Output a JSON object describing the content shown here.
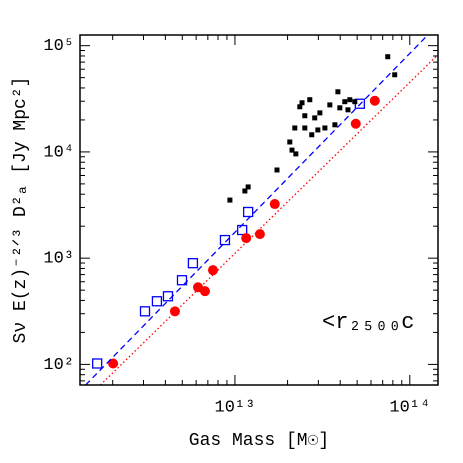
{
  "chart_data": {
    "type": "scatter",
    "xlabel": "Gas Mass [M☉]",
    "ylabel": "Sν E(z)⁻²ᐟ³ D²ₐ [Jy Mpc²]",
    "annotation": "<r₂₅₀₀c",
    "xscale": "log",
    "yscale": "log",
    "xlim": [
      1300000000000.0,
      145000000000000.0
    ],
    "ylim": [
      64,
      126000.0
    ],
    "xticks": [
      {
        "value": 10000000000000.0,
        "label": "10¹³"
      },
      {
        "value": 100000000000000.0,
        "label": "10¹⁴"
      }
    ],
    "yticks": [
      {
        "value": 100,
        "label": "10²"
      },
      {
        "value": 1000,
        "label": "10³"
      },
      {
        "value": 10000,
        "label": "10⁴"
      },
      {
        "value": 100000,
        "label": "10⁵"
      }
    ],
    "series": [
      {
        "color": "#0000ff",
        "marker": "square-open",
        "x": [
          1630000000000.0,
          3060000000000.0,
          3580000000000.0,
          4140000000000.0,
          4980000000000.0,
          5750000000000.0,
          8770000000000.0,
          11000000000000.0,
          11900000000000.0,
          51800000000000.0
        ],
        "values": [
          102,
          316,
          393,
          438,
          620,
          897,
          1480,
          1840,
          2720,
          28400
        ]
      },
      {
        "color": "#ff0000",
        "marker": "circle",
        "x": [
          2010000000000.0,
          4540000000000.0,
          6150000000000.0,
          6740000000000.0,
          7490000000000.0,
          11600000000000.0,
          13900000000000.0,
          16900000000000.0,
          49100000000000.0,
          63100000000000.0
        ],
        "values": [
          102,
          316,
          532,
          489,
          771,
          1545,
          1683,
          3230,
          18400,
          30300
        ]
      },
      {
        "color": "#000000",
        "marker": "square-small",
        "x": [
          9360000000000.0,
          11900000000000.0,
          11400000000000.0,
          17400000000000.0,
          20600000000000.0,
          21200000000000.0,
          22300000000000.0,
          22000000000000.0,
          23500000000000.0,
          24200000000000.0,
          25100000000000.0,
          25100000000000.0,
          26800000000000.0,
          27500000000000.0,
          28600000000000.0,
          29800000000000.0,
          30600000000000.0,
          32700000000000.0,
          34900000000000.0,
          37300000000000.0,
          38800000000000.0,
          39800000000000.0,
          42500000000000.0,
          44300000000000.0,
          45400000000000.0,
          48500000000000.0,
          82000000000000.0,
          74800000000000.0
        ],
        "values": [
          3520,
          4680,
          4290,
          6760,
          12400,
          10400,
          9580,
          16800,
          26600,
          29000,
          21900,
          16800,
          31000,
          14500,
          20900,
          16100,
          23300,
          16800,
          27700,
          18000,
          36800,
          26000,
          29700,
          24900,
          31000,
          29700,
          53200,
          78700
        ]
      },
      {
        "color": "#0000ff",
        "line": "dashed",
        "x": [
          1400000000000.0,
          145000000000000.0
        ],
        "values": [
          64,
          158000
        ]
      },
      {
        "color": "#ff0000",
        "line": "dotted",
        "x": [
          1700000000000.0,
          145000000000000.0
        ],
        "values": [
          64,
          82200
        ]
      }
    ]
  }
}
